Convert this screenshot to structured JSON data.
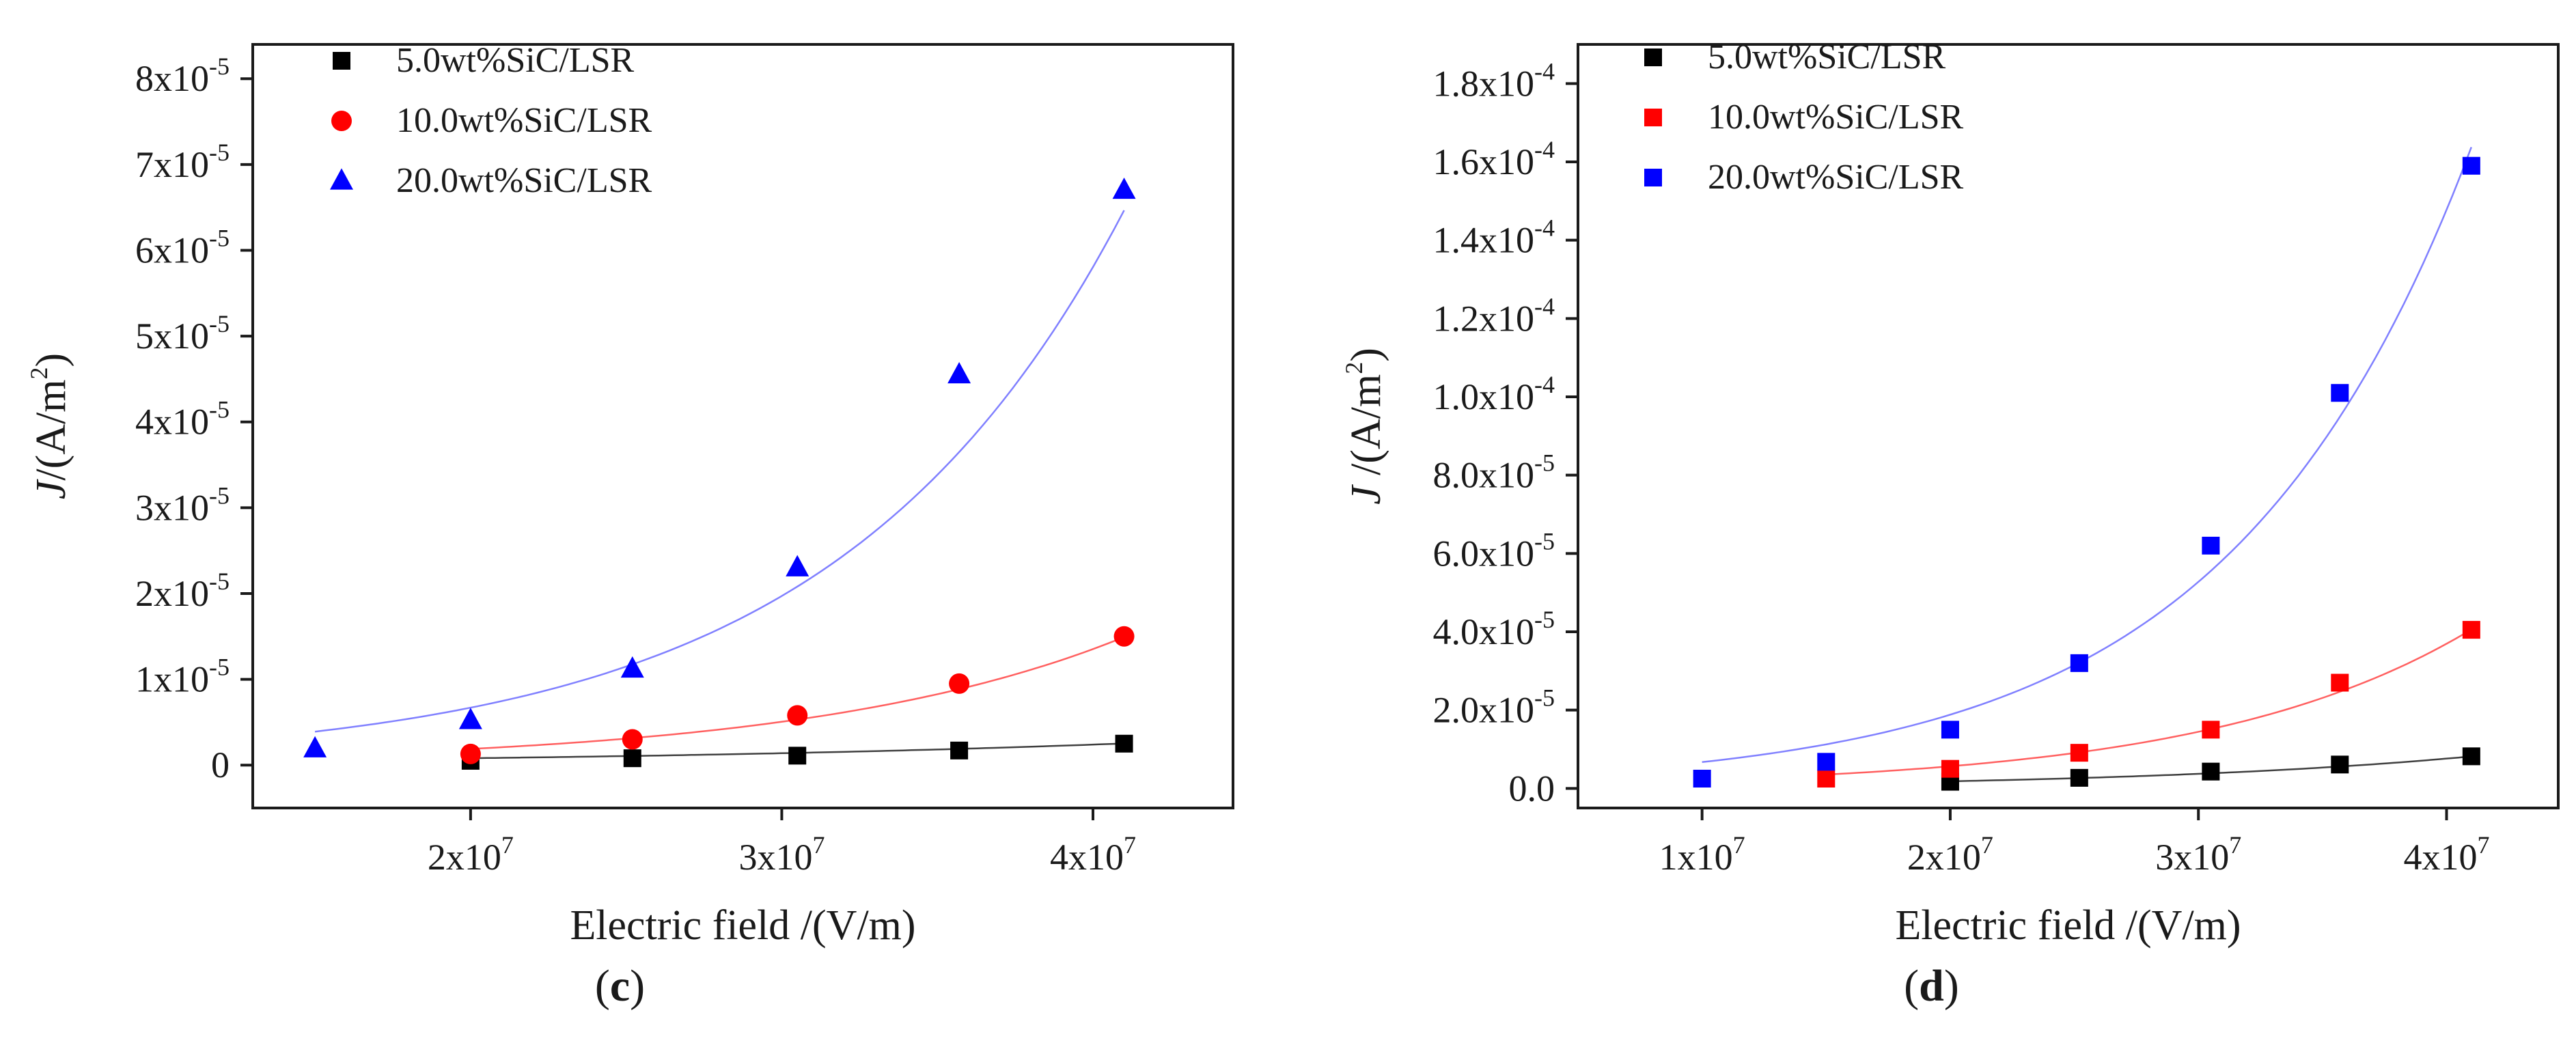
{
  "chart_data": [
    {
      "type": "scatter",
      "panel_label": "c",
      "xlabel": "Electric field /(V/m)",
      "ylabel_prefix": "J",
      "ylabel_suffix": "/(A/m",
      "ylabel_sup": "2",
      "ylabel_close": ")",
      "xlim": [
        13000000,
        44500000
      ],
      "ylim": [
        -5e-06,
        8.4e-05
      ],
      "x_ticks": [
        {
          "value": 20000000,
          "mantissa": "2x10",
          "exp": "7"
        },
        {
          "value": 30000000,
          "mantissa": "3x10",
          "exp": "7"
        },
        {
          "value": 40000000,
          "mantissa": "4x10",
          "exp": "7"
        }
      ],
      "y_ticks": [
        {
          "value": 0,
          "mantissa": "0",
          "exp": ""
        },
        {
          "value": 1e-05,
          "mantissa": "1x10",
          "exp": "-5"
        },
        {
          "value": 2e-05,
          "mantissa": "2x10",
          "exp": "-5"
        },
        {
          "value": 3e-05,
          "mantissa": "3x10",
          "exp": "-5"
        },
        {
          "value": 4e-05,
          "mantissa": "4x10",
          "exp": "-5"
        },
        {
          "value": 5e-05,
          "mantissa": "5x10",
          "exp": "-5"
        },
        {
          "value": 6e-05,
          "mantissa": "6x10",
          "exp": "-5"
        },
        {
          "value": 7e-05,
          "mantissa": "7x10",
          "exp": "-5"
        },
        {
          "value": 8e-05,
          "mantissa": "8x10",
          "exp": "-5"
        }
      ],
      "legend_position": "top-left",
      "series": [
        {
          "name": "5.0wt%SiC/LSR",
          "color": "#000000",
          "marker": "square",
          "fit_color": "#404040",
          "x": [
            20000000,
            25200000,
            30500000,
            35700000,
            41000000
          ],
          "y": [
            5e-07,
            8e-07,
            1.1e-06,
            1.7e-06,
            2.5e-06
          ],
          "fit": {
            "a": 2.7e-07,
            "b": 5.45e-08
          }
        },
        {
          "name": "10.0wt%SiC/LSR",
          "color": "#ff0000",
          "marker": "circle",
          "fit_color": "#ff6060",
          "x": [
            20000000,
            25200000,
            30500000,
            35700000,
            41000000
          ],
          "y": [
            1.3e-06,
            3e-06,
            5.8e-06,
            9.5e-06,
            1.5e-05
          ],
          "fit": {
            "a": 2.63e-07,
            "b": 9.85e-08
          }
        },
        {
          "name": "20.0wt%SiC/LSR",
          "color": "#0000ff",
          "marker": "triangle",
          "fit_color": "#8080ff",
          "x": [
            15000000,
            20000000,
            25200000,
            30500000,
            35700000,
            41000000
          ],
          "y": [
            1.9e-06,
            5.2e-06,
            1.12e-05,
            2.3e-05,
            4.55e-05,
            6.7e-05
          ],
          "fit": {
            "a": 7.72e-07,
            "b": 1.08e-07
          }
        }
      ]
    },
    {
      "type": "scatter",
      "panel_label": "d",
      "xlabel": "Electric field /(V/m)",
      "ylabel_prefix": "J",
      "ylabel_suffix": " /(A/m",
      "ylabel_sup": "2",
      "ylabel_close": ")",
      "xlim": [
        5000000,
        44500000
      ],
      "ylim": [
        -5e-06,
        0.00019
      ],
      "x_ticks": [
        {
          "value": 10000000,
          "mantissa": "1x10",
          "exp": "7"
        },
        {
          "value": 20000000,
          "mantissa": "2x10",
          "exp": "7"
        },
        {
          "value": 30000000,
          "mantissa": "3x10",
          "exp": "7"
        },
        {
          "value": 40000000,
          "mantissa": "4x10",
          "exp": "7"
        }
      ],
      "y_ticks": [
        {
          "value": 0,
          "mantissa": "0.0",
          "exp": ""
        },
        {
          "value": 2e-05,
          "mantissa": "2.0x10",
          "exp": "-5"
        },
        {
          "value": 4e-05,
          "mantissa": "4.0x10",
          "exp": "-5"
        },
        {
          "value": 6e-05,
          "mantissa": "6.0x10",
          "exp": "-5"
        },
        {
          "value": 8e-05,
          "mantissa": "8.0x10",
          "exp": "-5"
        },
        {
          "value": 0.0001,
          "mantissa": "1.0x10",
          "exp": "-4"
        },
        {
          "value": 0.00012,
          "mantissa": "1.2x10",
          "exp": "-4"
        },
        {
          "value": 0.00014,
          "mantissa": "1.4x10",
          "exp": "-4"
        },
        {
          "value": 0.00016,
          "mantissa": "1.6x10",
          "exp": "-4"
        },
        {
          "value": 0.00018,
          "mantissa": "1.8x10",
          "exp": "-4"
        }
      ],
      "legend_position": "top-left",
      "series": [
        {
          "name": "5.0wt%SiC/LSR",
          "color": "#000000",
          "marker": "square",
          "fit_color": "#404040",
          "x": [
            20000000,
            25200000,
            30500000,
            35700000,
            41000000
          ],
          "y": [
            1.7e-06,
            2.7e-06,
            4.3e-06,
            6.1e-06,
            8.2e-06
          ],
          "fit": {
            "a": 4.36e-07,
            "b": 7.15e-08
          }
        },
        {
          "name": "10.0wt%SiC/LSR",
          "color": "#ff0000",
          "marker": "square",
          "fit_color": "#ff6060",
          "x": [
            15000000,
            20000000,
            25200000,
            30500000,
            35700000,
            41000000
          ],
          "y": [
            2.5e-06,
            5e-06,
            9.1e-06,
            1.5e-05,
            2.7e-05,
            4.05e-05
          ],
          "fit": {
            "a": 8.67e-07,
            "b": 9.38e-08
          }
        },
        {
          "name": "20.0wt%SiC/LSR",
          "color": "#0000ff",
          "marker": "square",
          "fit_color": "#8080ff",
          "x": [
            10000000,
            15000000,
            20000000,
            25200000,
            30500000,
            35700000,
            41000000
          ],
          "y": [
            2.5e-06,
            6.8e-06,
            1.5e-05,
            3.2e-05,
            6.2e-05,
            0.000101,
            0.000159
          ],
          "fit": {
            "a": 2.4e-06,
            "b": 1.03e-07
          }
        }
      ]
    }
  ]
}
